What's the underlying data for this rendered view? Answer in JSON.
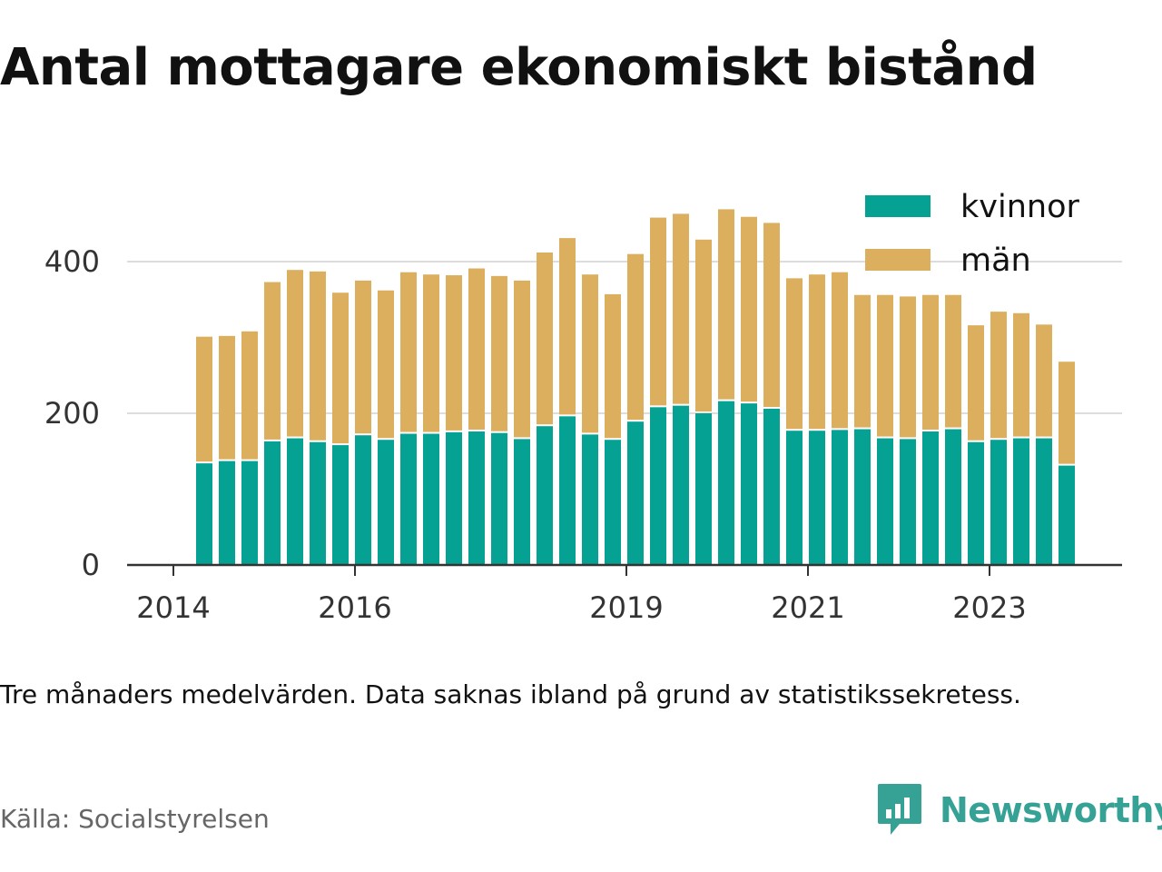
{
  "title": "Antal mottagare ekonomiskt bistånd",
  "note": "Tre månaders medelvärden. Data saknas ibland på grund av statistikssekretess.",
  "source": "Källa: Socialstyrelsen",
  "brand": "Newsworthy",
  "colors": {
    "kvinnor": "#05a293",
    "man": "#dcaf5f",
    "grid": "#dddddd",
    "axis": "#333333",
    "brand": "#36a295"
  },
  "chart_data": {
    "type": "bar",
    "stacked": true,
    "x_ticks": [
      "2014",
      "2016",
      "2019",
      "2021",
      "2023"
    ],
    "y_ticks": [
      "0",
      "200",
      "400"
    ],
    "ylim": [
      0,
      500
    ],
    "legend_position": "top-right",
    "series": [
      {
        "name": "kvinnor",
        "values": [
          134,
          137,
          137,
          163,
          167,
          162,
          158,
          171,
          165,
          173,
          173,
          175,
          176,
          174,
          166,
          183,
          196,
          172,
          165,
          189,
          208,
          210,
          200,
          216,
          213,
          206,
          177,
          177,
          178,
          179,
          167,
          166,
          176,
          179,
          162,
          165,
          167,
          167,
          131
        ]
      },
      {
        "name": "män",
        "values": [
          167,
          165,
          171,
          210,
          222,
          225,
          201,
          204,
          197,
          213,
          210,
          207,
          215,
          207,
          209,
          229,
          235,
          211,
          192,
          221,
          250,
          253,
          229,
          253,
          246,
          245,
          201,
          206,
          208,
          177,
          189,
          188,
          180,
          177,
          154,
          169,
          165,
          150,
          137
        ]
      }
    ]
  }
}
